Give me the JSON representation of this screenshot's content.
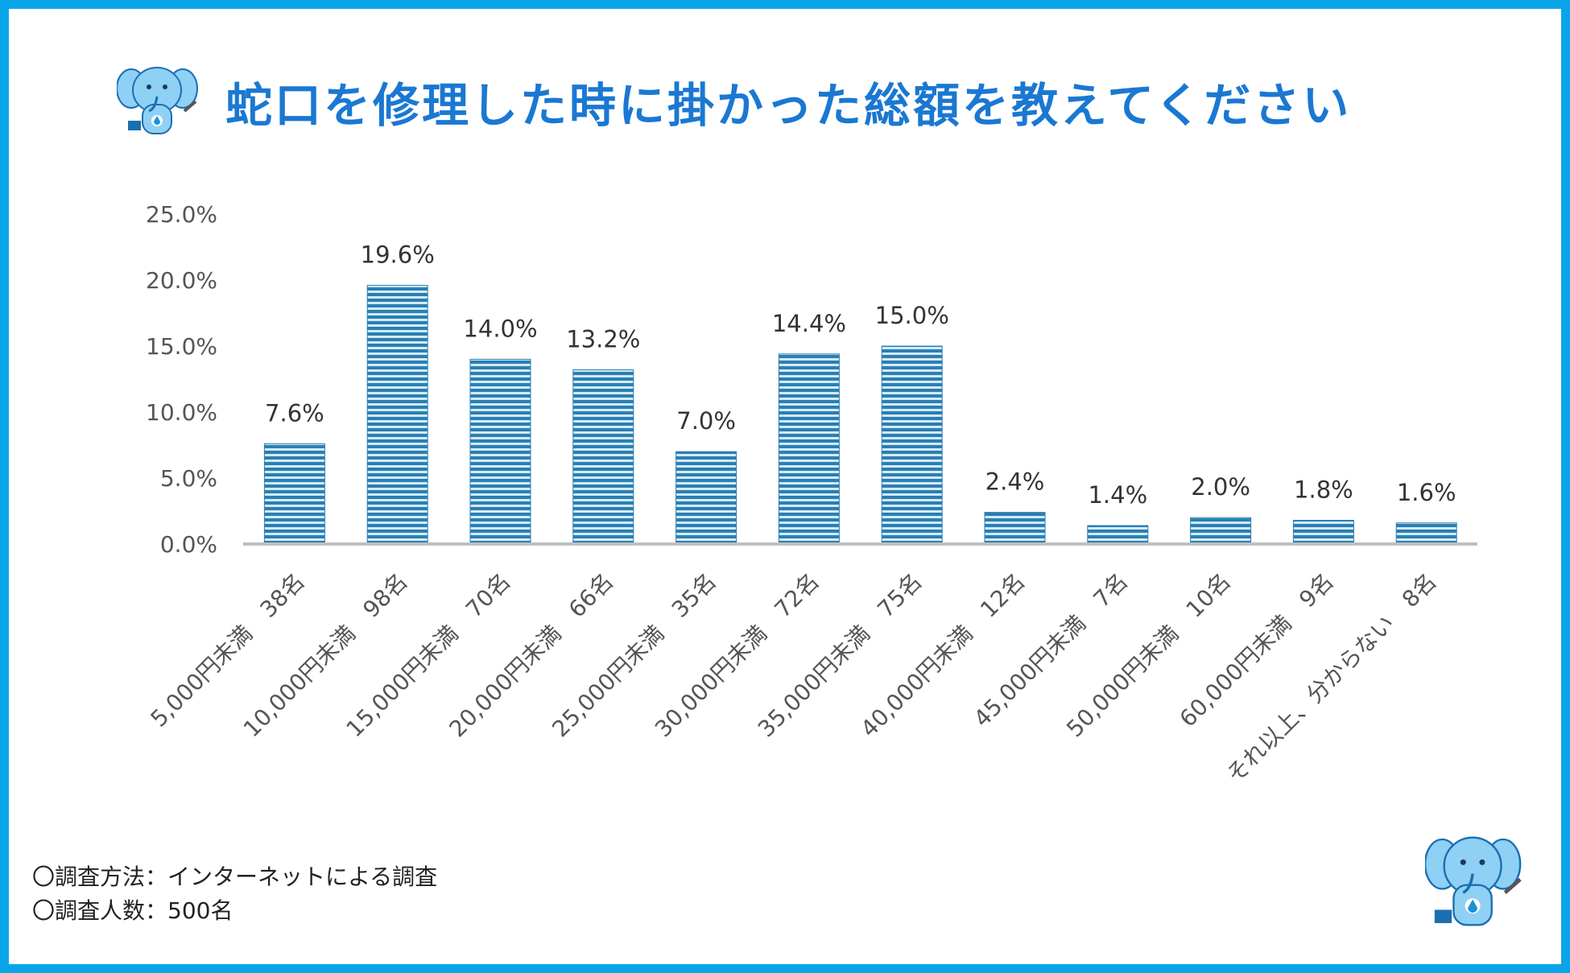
{
  "title": "蛇口を修理した時に掛かった総額を教えてください",
  "notes": {
    "method": "〇調査方法：インターネットによる調査",
    "count": "〇調査人数：500名"
  },
  "colors": {
    "frame": "#0aa5e8",
    "title": "#1a78d2",
    "bar_dark": "#2b7fb3",
    "bar_light": "#d4ebf7",
    "axis": "#bfbfbf",
    "text": "#444444"
  },
  "chart_data": {
    "type": "bar",
    "title": "蛇口を修理した時に掛かった総額を教えてください",
    "xlabel": "",
    "ylabel": "",
    "ylim": [
      0,
      25
    ],
    "yticks": [
      "0.0%",
      "5.0%",
      "10.0%",
      "15.0%",
      "20.0%",
      "25.0%"
    ],
    "grid": false,
    "categories": [
      "5,000円未満　38名",
      "10,000円未満　98名",
      "15,000円未満　70名",
      "20,000円未満　66名",
      "25,000円未満　35名",
      "30,000円未満　72名",
      "35,000円未満　75名",
      "40,000円未満　12名",
      "45,000円未満　7名",
      "50,000円未満　10名",
      "60,000円未満　9名",
      "それ以上、分からない　8名"
    ],
    "values": [
      7.6,
      19.6,
      14.0,
      13.2,
      7.0,
      14.4,
      15.0,
      2.4,
      1.4,
      2.0,
      1.8,
      1.6
    ],
    "value_labels": [
      "7.6%",
      "19.6%",
      "14.0%",
      "13.2%",
      "7.0%",
      "14.4%",
      "15.0%",
      "2.4%",
      "1.4%",
      "2.0%",
      "1.8%",
      "1.6%"
    ]
  }
}
